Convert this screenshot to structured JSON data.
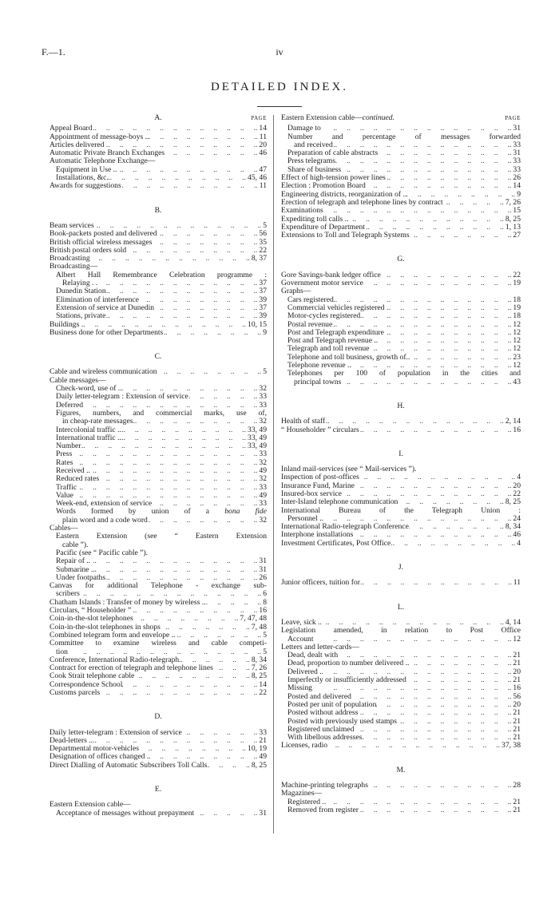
{
  "header": {
    "report_code": "F.—1.",
    "page_number": "iv",
    "title": "DETAILED INDEX.",
    "page_label": "PAGE"
  },
  "columns": {
    "left": [
      {
        "letter": "A.",
        "entries": [
          {
            "text": "Appeal Board",
            "page": "14",
            "level": 0
          },
          {
            "text": "Appointment of message-boys ..",
            "page": "11",
            "level": 0
          },
          {
            "text": "Articles delivered",
            "page": "20",
            "level": 0
          },
          {
            "text": "Automatic Private Branch Exchanges",
            "page": "46",
            "level": 0
          },
          {
            "text": "Automatic Telephone Exchange—",
            "page": "",
            "level": 0
          },
          {
            "text": "Equipment in Use ..",
            "page": "47",
            "level": 1
          },
          {
            "text": "Installations, &c.",
            "page": "45, 46",
            "level": 1
          },
          {
            "text": "Awards for suggestions",
            "page": "11",
            "level": 0
          }
        ]
      },
      {
        "letter": "B.",
        "entries": [
          {
            "text": "Beam services",
            "page": "5",
            "level": 0
          },
          {
            "text": "Book-packets posted and delivered",
            "page": "56",
            "level": 0
          },
          {
            "text": "British official wireless messages",
            "page": "35",
            "level": 0
          },
          {
            "text": "British postal orders sold",
            "page": "22",
            "level": 0
          },
          {
            "text": "Broadcasting",
            "page": "8, 37",
            "level": 0
          },
          {
            "text": "Broadcasting—",
            "page": "",
            "level": 0
          },
          {
            "text": "Albert Hall Remembrance Celebration programme :",
            "cont": "Relaying . .",
            "page": "37",
            "level": 1
          },
          {
            "text": "Dunedin Station",
            "page": "37",
            "level": 1
          },
          {
            "text": "Elimination of interference",
            "page": "39",
            "level": 1
          },
          {
            "text": "Extension of service at Dunedin",
            "page": "37",
            "level": 1
          },
          {
            "text": "Stations, private",
            "page": "39",
            "level": 1
          },
          {
            "text": "Buildings",
            "page": "10, 15",
            "level": 0
          },
          {
            "text": "Business done for other Departments",
            "page": "9",
            "level": 0
          }
        ]
      },
      {
        "letter": "C.",
        "entries": [
          {
            "text": "Cable and wireless communication",
            "page": "5",
            "level": 0
          },
          {
            "text": "Cable messages—",
            "page": "",
            "level": 0
          },
          {
            "text": "Check-word, use of ..",
            "page": "32",
            "level": 1
          },
          {
            "text": "Daily letter-telegram : Extension of service",
            "page": "33",
            "level": 1
          },
          {
            "text": "Deferred",
            "page": "33",
            "level": 1
          },
          {
            "text": "Figures, numbers, and commercial marks, use of,",
            "cont": "in cheap-rate messages",
            "page": "32",
            "level": 1
          },
          {
            "text": "Intercolonial traffic ..",
            "page": "33, 49",
            "level": 1
          },
          {
            "text": "International traffic ..",
            "page": "33, 49",
            "level": 1
          },
          {
            "text": "Number",
            "page": "33, 49",
            "level": 1
          },
          {
            "text": "Press",
            "page": "33",
            "level": 1
          },
          {
            "text": "Rates",
            "page": "32",
            "level": 1
          },
          {
            "text": "Received ..",
            "page": "49",
            "level": 1
          },
          {
            "text": "Reduced rates",
            "page": "32",
            "level": 1
          },
          {
            "text": "Traffic",
            "page": "33",
            "level": 1
          },
          {
            "text": "Value",
            "page": "49",
            "level": 1
          },
          {
            "text": "Week-end, extension of service",
            "page": "33",
            "level": 1
          },
          {
            "text": "Words formed by union of a",
            "em": "bona fide",
            "cont": "plain word and a code word",
            "page": "32",
            "level": 1
          },
          {
            "text": "Cables—",
            "page": "",
            "level": 0
          },
          {
            "text": "Eastern Extension (see “ Eastern Extension",
            "cont": "cable ”).",
            "page": "",
            "level": 1
          },
          {
            "text": "Pacific (see “ Pacific cable ”).",
            "page": "",
            "level": 1
          },
          {
            "text": "Repair of ..",
            "page": "31",
            "level": 1
          },
          {
            "text": "Submarine ..",
            "page": "31",
            "level": 1
          },
          {
            "text": "Under footpaths",
            "page": "26",
            "level": 1
          },
          {
            "text": "Canvas for additional Telephone - exchange sub-",
            "cont": "scribers",
            "page": "6",
            "level": 0
          },
          {
            "text": "Chatham Islands : Transfer of money by wireless ..",
            "page": "8",
            "level": 0
          },
          {
            "text": "Circulars, “ Householder ”",
            "page": "16",
            "level": 0
          },
          {
            "text": "Coin-in-the-slot telephones",
            "page": "7, 47, 48",
            "level": 0
          },
          {
            "text": "Coin-in-the-slot telephones in shops",
            "page": "7, 48",
            "level": 0
          },
          {
            "text": "Combined telegram form and envelope ..",
            "page": "5",
            "level": 0
          },
          {
            "text": "Committee to examine wireless and cable competi-",
            "cont": "tion",
            "page": "5",
            "level": 0
          },
          {
            "text": "Conference, International Radio-telegraph",
            "page": "8, 34",
            "level": 0
          },
          {
            "text": "Contract for erection of telegraph and telephone lines",
            "page": "7, 26",
            "level": 0
          },
          {
            "text": "Cook Strait telephone cable",
            "page": "8, 25",
            "level": 0
          },
          {
            "text": "Correspondence School",
            "page": "14",
            "level": 0
          },
          {
            "text": "Customs parcels",
            "page": "22",
            "level": 0
          }
        ]
      },
      {
        "letter": "D.",
        "entries": [
          {
            "text": "Daily letter-telegram : Extension of service",
            "page": "33",
            "level": 0
          },
          {
            "text": "Dead-letters ..",
            "page": "21",
            "level": 0
          },
          {
            "text": "Departmental motor-vehicles",
            "page": "10, 19",
            "level": 0
          },
          {
            "text": "Designation of offices changed ..",
            "page": "49",
            "level": 0
          },
          {
            "text": "Direct Dialling of Automatic Subscribers Toll Calls",
            "page": "8, 25",
            "level": 0
          }
        ]
      },
      {
        "letter": "E.",
        "entries": [
          {
            "text": "Eastern Extension cable—",
            "page": "",
            "level": 0
          },
          {
            "text": "Acceptance of messages without prepayment",
            "page": "31",
            "level": 1
          }
        ]
      }
    ],
    "right": [
      {
        "letter": "",
        "heading_text": "Eastern Extension cable—",
        "heading_em": "continued.",
        "entries": [
          {
            "text": "Damage to",
            "page": "31",
            "level": 1
          },
          {
            "text": "Number and percentage of messages forwarded",
            "cont": "and received",
            "page": "33",
            "level": 1
          },
          {
            "text": "Preparation of cable abstracts",
            "page": "31",
            "level": 1
          },
          {
            "text": "Press telegrams",
            "page": "33",
            "level": 1
          },
          {
            "text": "Share of business",
            "page": "33",
            "level": 1
          },
          {
            "text": "Effect of high-tension power lines",
            "page": "26",
            "level": 0
          },
          {
            "text": "Election : Promotion Board",
            "page": "14",
            "level": 0
          },
          {
            "text": "Engineering districts, reorganization of ..",
            "page": "9",
            "level": 0
          },
          {
            "text": "Erection of telegraph and telephone lines by contract",
            "page": "7, 26",
            "level": 0
          },
          {
            "text": "Examinations",
            "page": "15",
            "level": 0
          },
          {
            "text": "Expediting toll calls ..",
            "page": "8, 25",
            "level": 0
          },
          {
            "text": "Expenditure of Department",
            "page": "1, 13",
            "level": 0
          },
          {
            "text": "Extensions to Toll and Telegraph Systems",
            "page": "27",
            "level": 0
          }
        ]
      },
      {
        "letter": "G.",
        "entries": [
          {
            "text": "Gore Savings-bank ledger office",
            "page": "22",
            "level": 0
          },
          {
            "text": "Government motor service",
            "page": "19",
            "level": 0
          },
          {
            "text": "Graphs—",
            "page": "",
            "level": 0
          },
          {
            "text": "Cars registered",
            "page": "18",
            "level": 1
          },
          {
            "text": "Commercial vehicles registered",
            "page": "19",
            "level": 1
          },
          {
            "text": "Motor-cycles registered",
            "page": "18",
            "level": 1
          },
          {
            "text": "Postal revenue",
            "page": "12",
            "level": 1
          },
          {
            "text": "Post and Telegraph expenditure",
            "page": "12",
            "level": 1
          },
          {
            "text": "Post and Telegraph revenue ..",
            "page": "12",
            "level": 1
          },
          {
            "text": "Telegraph and toll revenue",
            "page": "12",
            "level": 1
          },
          {
            "text": "Telephone and toll business, growth of..",
            "page": "23",
            "level": 1
          },
          {
            "text": "Telephone revenue ..",
            "page": "12",
            "level": 1
          },
          {
            "text": "Telephones per 100 of population in the cities and",
            "cont": "principal towns",
            "page": "43",
            "level": 1
          }
        ]
      },
      {
        "letter": "H.",
        "entries": [
          {
            "text": "Health of staff",
            "page": "2, 14",
            "level": 0
          },
          {
            "text": "“ Householder ” circulars",
            "page": "16",
            "level": 0
          }
        ]
      },
      {
        "letter": "I.",
        "entries": [
          {
            "text": "Inland mail-services (see “ Mail-services ”).",
            "page": "",
            "level": 0
          },
          {
            "text": "Inspection of post-offices",
            "page": "4",
            "level": 0
          },
          {
            "text": "Insurance Fund, Marine",
            "page": "20",
            "level": 0
          },
          {
            "text": "Insured-box service",
            "page": "22",
            "level": 0
          },
          {
            "text": "Inter-Island telephone communication",
            "page": "8, 25",
            "level": 0
          },
          {
            "text": "International Bureau of the Telegraph Union :",
            "cont": "Personnel ..",
            "page": "24",
            "level": 0
          },
          {
            "text": "International Radio-telegraph Conference",
            "page": "8, 34",
            "level": 0
          },
          {
            "text": "Interphone installations",
            "page": "46",
            "level": 0
          },
          {
            "text": "Investment Certificates, Post Office",
            "page": "4",
            "level": 0
          }
        ]
      },
      {
        "letter": "J.",
        "entries": [
          {
            "text": "Junior officers, tuition for",
            "page": "11",
            "level": 0
          }
        ]
      },
      {
        "letter": "L.",
        "entries": [
          {
            "text": "Leave, sick ..",
            "page": "4, 14",
            "level": 0
          },
          {
            "text": "Legislation amended, in relation to Post Office",
            "cont": "Account",
            "page": "12",
            "level": 0
          },
          {
            "text": "Letters and letter-cards—",
            "page": "",
            "level": 0
          },
          {
            "text": "Dead, dealt with",
            "page": "21",
            "level": 1
          },
          {
            "text": "Dead, proportion to number delivered ..",
            "page": "21",
            "level": 1
          },
          {
            "text": "Delivered ..",
            "page": "20",
            "level": 1
          },
          {
            "text": "Imperfectly or insufficiently addressed",
            "page": "21",
            "level": 1
          },
          {
            "text": "Missing",
            "page": "16",
            "level": 1
          },
          {
            "text": "Posted and delivered",
            "page": "56",
            "level": 1
          },
          {
            "text": "Posted per unit of population",
            "page": "20",
            "level": 1
          },
          {
            "text": "Posted without address",
            "page": "21",
            "level": 1
          },
          {
            "text": "Posted with previously used stamps",
            "page": "21",
            "level": 1
          },
          {
            "text": "Registered unclaimed",
            "page": "21",
            "level": 1
          },
          {
            "text": "With libellous addresses",
            "page": "21",
            "level": 1
          },
          {
            "text": "Licenses, radio",
            "page": "37, 38",
            "level": 0
          }
        ]
      },
      {
        "letter": "M.",
        "entries": [
          {
            "text": "Machine-printing telegraphs",
            "page": "28",
            "level": 0
          },
          {
            "text": "Magazines—",
            "page": "",
            "level": 0
          },
          {
            "text": "Registered ..",
            "page": "21",
            "level": 1
          },
          {
            "text": "Removed from register",
            "page": "21",
            "level": 1
          }
        ]
      }
    ]
  }
}
